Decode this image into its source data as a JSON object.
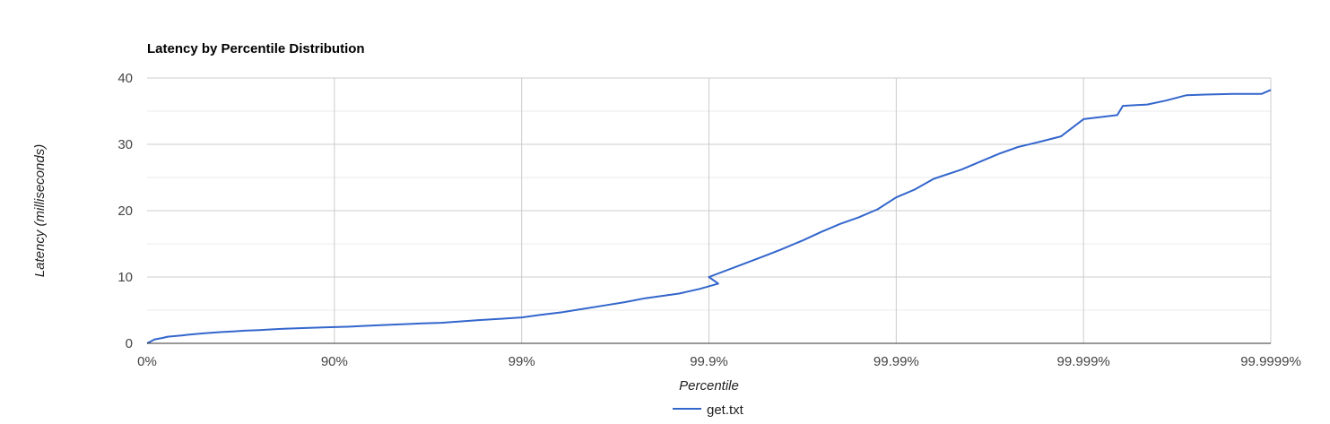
{
  "chart_data": {
    "type": "line",
    "title": "Latency by Percentile Distribution",
    "xlabel": "Percentile",
    "ylabel": "Latency (milliseconds)",
    "x_scale": "log-percentile",
    "x_ticks": [
      "0%",
      "90%",
      "99%",
      "99.9%",
      "99.99%",
      "99.999%",
      "99.9999%"
    ],
    "y_ticks": [
      "0",
      "10",
      "20",
      "30",
      "40"
    ],
    "ylim": [
      0,
      40
    ],
    "grid": true,
    "legend_position": "bottom",
    "colors": {
      "series": "#3366cc",
      "grid_major": "#cccccc",
      "grid_minor": "#ebebeb",
      "axis": "#333333"
    },
    "series": [
      {
        "name": "get.txt",
        "points": [
          [
            "0%",
            0.0
          ],
          [
            "8.2%",
            0.6
          ],
          [
            "15.8%",
            0.8
          ],
          [
            "22.4%",
            1.0
          ],
          [
            "29.2%",
            1.1
          ],
          [
            "34.7%",
            1.2
          ],
          [
            "39.7%",
            1.3
          ],
          [
            "45.1%",
            1.4
          ],
          [
            "50.2%",
            1.5
          ],
          [
            "55.3%",
            1.6
          ],
          [
            "60.5%",
            1.7
          ],
          [
            "65.1%",
            1.8
          ],
          [
            "69.3%",
            1.9
          ],
          [
            "73.5%",
            2.0
          ],
          [
            "77.6%",
            2.1
          ],
          [
            "81.5%",
            2.2
          ],
          [
            "85.2%",
            2.3
          ],
          [
            "88.5%",
            2.4
          ],
          [
            "90%",
            2.45
          ],
          [
            "91.4%",
            2.5
          ],
          [
            "92.8%",
            2.6
          ],
          [
            "94.0%",
            2.7
          ],
          [
            "95.0%",
            2.8
          ],
          [
            "95.9%",
            2.9
          ],
          [
            "96.6%",
            3.0
          ],
          [
            "97.3%",
            3.1
          ],
          [
            "97.9%",
            3.3
          ],
          [
            "98.3%",
            3.5
          ],
          [
            "98.7%",
            3.7
          ],
          [
            "99%",
            3.9
          ],
          [
            "99.2%",
            4.3
          ],
          [
            "99.4%",
            4.7
          ],
          [
            "99.53%",
            5.2
          ],
          [
            "99.64%",
            5.7
          ],
          [
            "99.72%",
            6.2
          ],
          [
            "99.78%",
            6.8
          ],
          [
            "99.83%",
            7.5
          ],
          [
            "99.86%",
            8.2
          ],
          [
            "99.89%",
            9.0
          ],
          [
            "99.9%",
            10.0
          ],
          [
            "99.93%",
            11.6
          ],
          [
            "99.949%",
            13.2
          ],
          [
            "99.960%",
            14.2
          ],
          [
            "99.968%",
            15.5
          ],
          [
            "99.975%",
            16.8
          ],
          [
            "99.980%",
            18.0
          ],
          [
            "99.984%",
            19.0
          ],
          [
            "99.987%",
            20.2
          ],
          [
            "99.99%",
            22.0
          ],
          [
            "99.993%",
            23.2
          ],
          [
            "99.995%",
            24.8
          ],
          [
            "99.996%",
            26.2
          ],
          [
            "99.997%",
            27.4
          ],
          [
            "99.9976%",
            28.6
          ],
          [
            "99.998%",
            29.6
          ],
          [
            "99.9985%",
            30.4
          ],
          [
            "99.9988%",
            31.2
          ],
          [
            "99.999%",
            33.8
          ],
          [
            "99.9993%",
            34.4
          ],
          [
            "99.99940%",
            35.8
          ],
          [
            "99.99950%",
            36.0
          ],
          [
            "99.99960%",
            36.6
          ],
          [
            "99.99970%",
            37.4
          ],
          [
            "99.99975%",
            37.5
          ],
          [
            "99.99980%",
            37.6
          ],
          [
            "99.99985%",
            37.6
          ],
          [
            "99.9999%",
            38.2
          ]
        ],
        "log_positions": [
          0.0,
          0.04,
          0.08,
          0.11,
          0.15,
          0.19,
          0.22,
          0.26,
          0.3,
          0.34,
          0.4,
          0.46,
          0.52,
          0.6,
          0.66,
          0.73,
          0.83,
          0.94,
          1.0,
          1.07,
          1.14,
          1.22,
          1.3,
          1.39,
          1.47,
          1.57,
          1.67,
          1.77,
          1.89,
          2.0,
          2.1,
          2.22,
          2.33,
          2.44,
          2.55,
          2.66,
          2.84,
          2.95,
          3.05,
          3.0,
          3.15,
          3.3,
          3.39,
          3.5,
          3.6,
          3.7,
          3.8,
          3.9,
          4.0,
          4.1,
          4.2,
          4.35,
          4.45,
          4.55,
          4.65,
          4.77,
          4.88,
          5.0,
          5.18,
          5.21,
          5.34,
          5.44,
          5.55,
          5.65,
          5.8,
          5.95,
          6.0
        ],
        "values_ms": [
          0.0,
          0.6,
          0.8,
          1.0,
          1.1,
          1.2,
          1.3,
          1.4,
          1.5,
          1.6,
          1.7,
          1.8,
          1.9,
          2.0,
          2.1,
          2.2,
          2.3,
          2.4,
          2.45,
          2.5,
          2.6,
          2.7,
          2.8,
          2.9,
          3.0,
          3.1,
          3.3,
          3.5,
          3.7,
          3.9,
          4.3,
          4.7,
          5.2,
          5.7,
          6.2,
          6.8,
          7.5,
          8.2,
          9.0,
          10.0,
          11.6,
          13.2,
          14.2,
          15.5,
          16.8,
          18.0,
          19.0,
          20.2,
          22.0,
          23.2,
          24.8,
          26.2,
          27.4,
          28.6,
          29.6,
          30.4,
          31.2,
          33.8,
          34.4,
          35.8,
          36.0,
          36.6,
          37.4,
          37.5,
          37.6,
          37.6,
          38.2
        ]
      }
    ]
  }
}
